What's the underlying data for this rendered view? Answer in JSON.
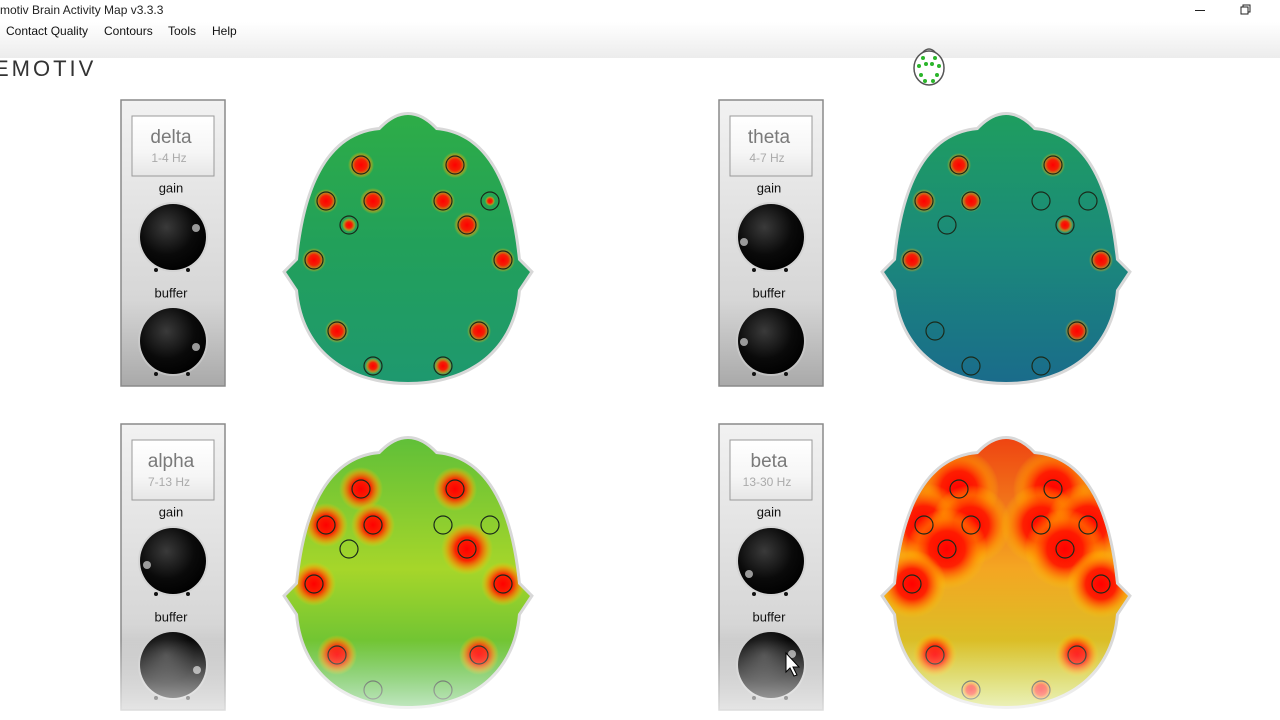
{
  "window": {
    "title": "motiv Brain Activity Map v3.3.3"
  },
  "menu": [
    "Contact Quality",
    "Contours",
    "Tools",
    "Help"
  ],
  "logo": "EMOTIV",
  "panels": [
    {
      "band": "delta",
      "range": "1-4 Hz",
      "gain_label": "gain",
      "buffer_label": "buffer"
    },
    {
      "band": "theta",
      "range": "4-7 Hz",
      "gain_label": "gain",
      "buffer_label": "buffer"
    },
    {
      "band": "alpha",
      "range": "7-13 Hz",
      "gain_label": "gain",
      "buffer_label": "buffer"
    },
    {
      "band": "beta",
      "range": "13-30 Hz",
      "gain_label": "gain",
      "buffer_label": "buffer"
    }
  ]
}
